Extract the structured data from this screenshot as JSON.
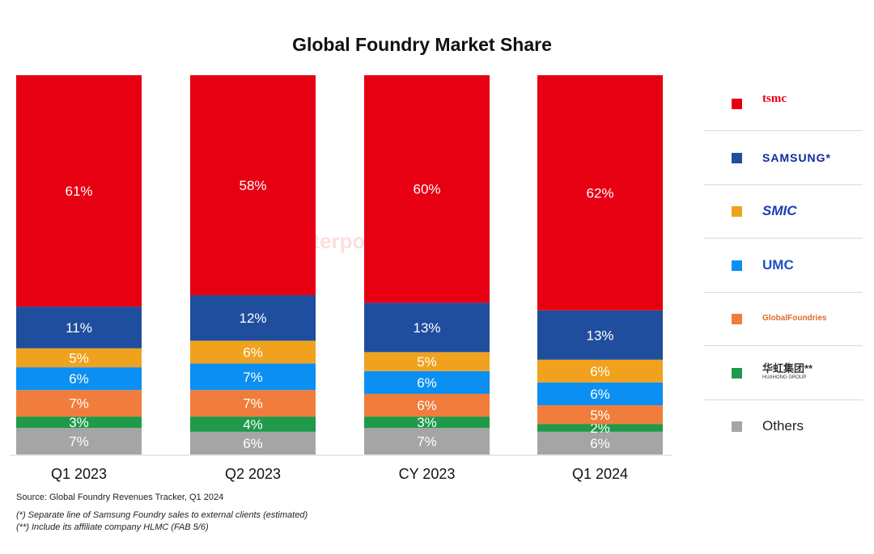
{
  "chart_data": {
    "type": "bar",
    "stacked": true,
    "title": "Global Foundry Market Share",
    "categories": [
      "Q1 2023",
      "Q2 2023",
      "CY 2023",
      "Q1 2024"
    ],
    "series": [
      {
        "name": "TSMC",
        "logo_text": "tsmc",
        "color": "#e60012",
        "values": [
          61,
          58,
          60,
          62
        ],
        "labels": [
          "61%",
          "58%",
          "60%",
          "62%"
        ]
      },
      {
        "name": "Samsung",
        "logo_text": "SAMSUNG*",
        "color": "#1f4e9e",
        "values": [
          11,
          12,
          13,
          13
        ],
        "labels": [
          "11%",
          "12%",
          "13%",
          "13%"
        ]
      },
      {
        "name": "SMIC",
        "logo_text": "SMIC",
        "color": "#f0a21e",
        "values": [
          5,
          6,
          5,
          6
        ],
        "labels": [
          "5%",
          "6%",
          "5%",
          "6%"
        ]
      },
      {
        "name": "UMC",
        "logo_text": "UMC",
        "color": "#0c8ff2",
        "values": [
          6,
          7,
          6,
          6
        ],
        "labels": [
          "6%",
          "7%",
          "6%",
          "6%"
        ]
      },
      {
        "name": "GlobalFoundries",
        "logo_text": "GlobalFoundries",
        "color": "#f07d3c",
        "values": [
          7,
          7,
          6,
          5
        ],
        "labels": [
          "7%",
          "7%",
          "6%",
          "5%"
        ]
      },
      {
        "name": "Hua Hong Group",
        "logo_text": "华虹集团**",
        "logo_subtext": "HUAHONG GROUP",
        "color": "#1e9a4a",
        "values": [
          3,
          4,
          3,
          2
        ],
        "labels": [
          "3%",
          "4%",
          "3%",
          "2%"
        ]
      },
      {
        "name": "Others",
        "logo_text": "Others",
        "color": "#a5a5a5",
        "values": [
          7,
          6,
          7,
          6
        ],
        "labels": [
          "7%",
          "6%",
          "7%",
          "6%"
        ]
      }
    ],
    "ylim": [
      0,
      100
    ],
    "xlabel": "",
    "ylabel": "",
    "legend_position": "right"
  },
  "watermark": "Counterpoint",
  "footer": {
    "source": "Source: Global Foundry Revenues Tracker, Q1 2024",
    "note1": "(*) Separate line of Samsung Foundry sales to external clients (estimated)",
    "note2": "(**) Include its affiliate company HLMC (FAB 5/6)"
  }
}
